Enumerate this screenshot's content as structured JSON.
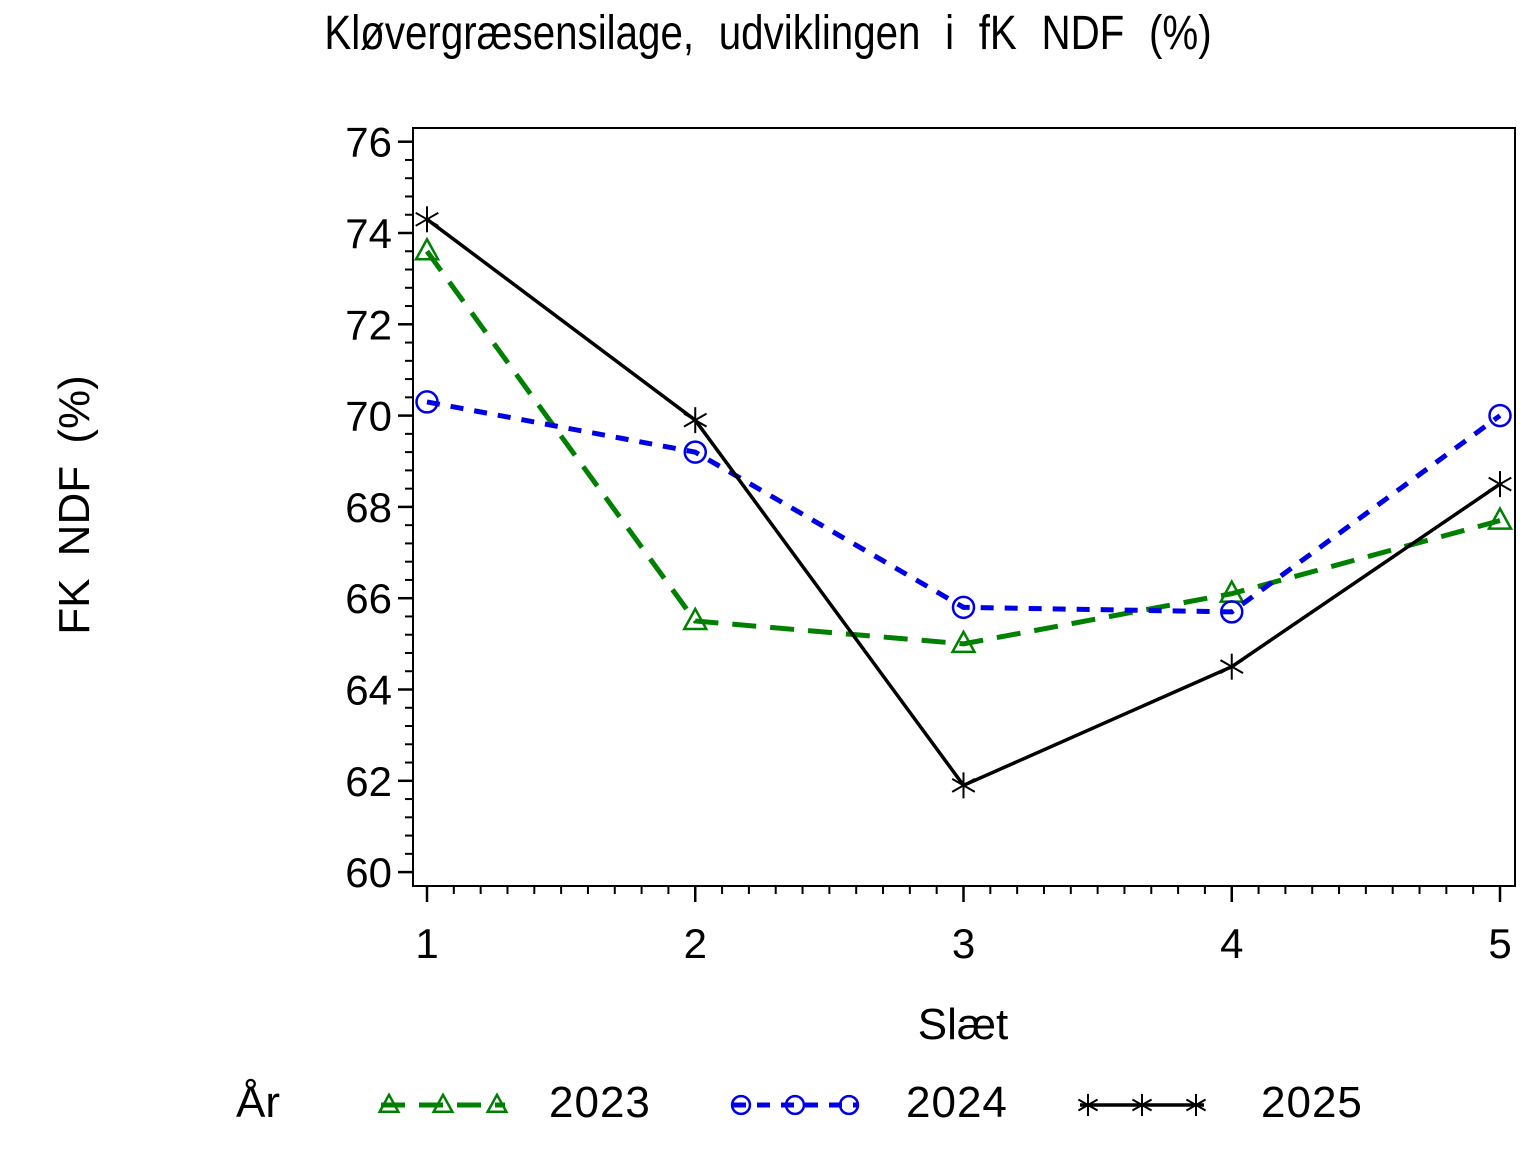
{
  "background": "#FFFFFF",
  "chart_data": {
    "type": "line",
    "title": "Kløvergræsensilage, udviklingen i fK NDF (%)",
    "xlabel": "Slæt",
    "ylabel": "FK NDF (%)",
    "x": [
      1,
      2,
      3,
      4,
      5
    ],
    "xticks": [
      1,
      2,
      3,
      4,
      5
    ],
    "yticks": [
      60,
      62,
      64,
      66,
      68,
      70,
      72,
      74,
      76
    ],
    "xlim": [
      0.95,
      5.05
    ],
    "ylim": [
      59.7,
      76.3
    ],
    "x_minor_step": 0.1,
    "y_minor_step": 0.4,
    "grid": false,
    "frame": true,
    "legend": {
      "title": "År",
      "position": "bottom"
    },
    "series": [
      {
        "name": "2023",
        "color": "#008000",
        "line_style": "dashed-long",
        "marker": "triangle",
        "values": [
          73.6,
          65.5,
          65.0,
          66.1,
          67.7
        ]
      },
      {
        "name": "2024",
        "color": "#0000E6",
        "line_style": "dashed",
        "marker": "circle",
        "values": [
          70.3,
          69.2,
          65.8,
          65.7,
          70.0
        ]
      },
      {
        "name": "2025",
        "color": "#000000",
        "line_style": "solid",
        "marker": "asterisk",
        "values": [
          74.3,
          69.9,
          61.9,
          64.5,
          68.5
        ]
      }
    ]
  }
}
